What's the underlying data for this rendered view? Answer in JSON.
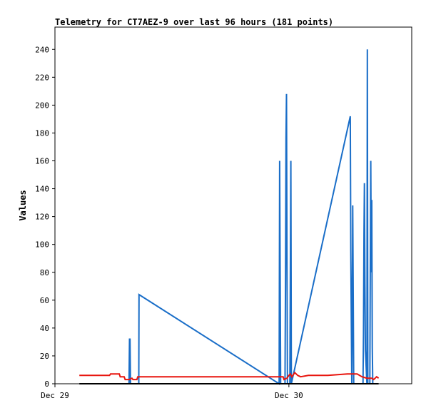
{
  "chart_data": {
    "type": "line",
    "title": "Telemetry for CT7AEZ-9 over last 96 hours (181 points)",
    "xlabel": "",
    "ylabel": "Values",
    "ylim": [
      0,
      256
    ],
    "y_ticks": [
      0,
      20,
      40,
      60,
      80,
      100,
      120,
      140,
      160,
      180,
      200,
      220,
      240
    ],
    "x_ticks": [
      {
        "label": "Dec 29",
        "hour": 0
      },
      {
        "label": "Dec 30",
        "hour": 24
      }
    ],
    "xlim_hours": [
      0,
      36.6
    ],
    "grid": false,
    "legend": "none",
    "series": [
      {
        "color": "#1a6ec8",
        "points": [
          [
            7.6,
            0
          ],
          [
            7.65,
            32
          ],
          [
            7.7,
            32
          ],
          [
            7.75,
            0
          ],
          [
            8.6,
            0
          ],
          [
            8.62,
            64
          ],
          [
            23.0,
            0
          ],
          [
            23.05,
            160
          ],
          [
            23.1,
            80
          ],
          [
            23.15,
            0
          ],
          [
            23.6,
            0
          ],
          [
            23.65,
            72
          ],
          [
            23.7,
            176
          ],
          [
            23.75,
            208
          ],
          [
            23.8,
            100
          ],
          [
            23.85,
            0
          ],
          [
            24.1,
            0
          ],
          [
            24.15,
            80
          ],
          [
            24.2,
            160
          ],
          [
            24.25,
            0
          ],
          [
            30.3,
            192
          ],
          [
            30.35,
            96
          ],
          [
            30.45,
            0
          ],
          [
            30.5,
            48
          ],
          [
            30.55,
            128
          ],
          [
            30.6,
            64
          ],
          [
            30.65,
            0
          ],
          [
            31.6,
            0
          ],
          [
            31.65,
            36
          ],
          [
            31.7,
            108
          ],
          [
            31.75,
            144
          ],
          [
            31.8,
            72
          ],
          [
            31.85,
            24
          ],
          [
            32.0,
            0
          ],
          [
            32.05,
            240
          ],
          [
            32.1,
            0
          ],
          [
            32.3,
            0
          ],
          [
            32.35,
            80
          ],
          [
            32.4,
            160
          ],
          [
            32.45,
            80
          ],
          [
            32.5,
            132
          ],
          [
            32.55,
            26
          ],
          [
            32.6,
            0
          ]
        ]
      },
      {
        "color": "#e8150e",
        "points": [
          [
            2.5,
            6
          ],
          [
            5.6,
            6
          ],
          [
            5.7,
            7
          ],
          [
            6.6,
            7
          ],
          [
            6.7,
            5
          ],
          [
            7.1,
            5
          ],
          [
            7.2,
            3
          ],
          [
            7.6,
            3
          ],
          [
            7.9,
            4
          ],
          [
            8.0,
            3
          ],
          [
            8.4,
            3
          ],
          [
            8.5,
            5
          ],
          [
            23.4,
            5
          ],
          [
            23.5,
            3
          ],
          [
            23.8,
            4
          ],
          [
            24.0,
            6
          ],
          [
            24.15,
            7
          ],
          [
            24.3,
            5
          ],
          [
            24.6,
            8
          ],
          [
            24.9,
            6
          ],
          [
            25.2,
            5
          ],
          [
            26.0,
            6
          ],
          [
            26.5,
            6
          ],
          [
            28.0,
            6
          ],
          [
            30.0,
            7
          ],
          [
            31.0,
            7
          ],
          [
            31.5,
            5
          ],
          [
            32.0,
            4
          ],
          [
            32.5,
            4
          ],
          [
            32.7,
            3
          ],
          [
            33.0,
            5
          ],
          [
            33.2,
            4
          ]
        ]
      },
      {
        "color": "#000000",
        "points": [
          [
            2.5,
            0
          ],
          [
            33.2,
            0
          ]
        ]
      }
    ]
  }
}
